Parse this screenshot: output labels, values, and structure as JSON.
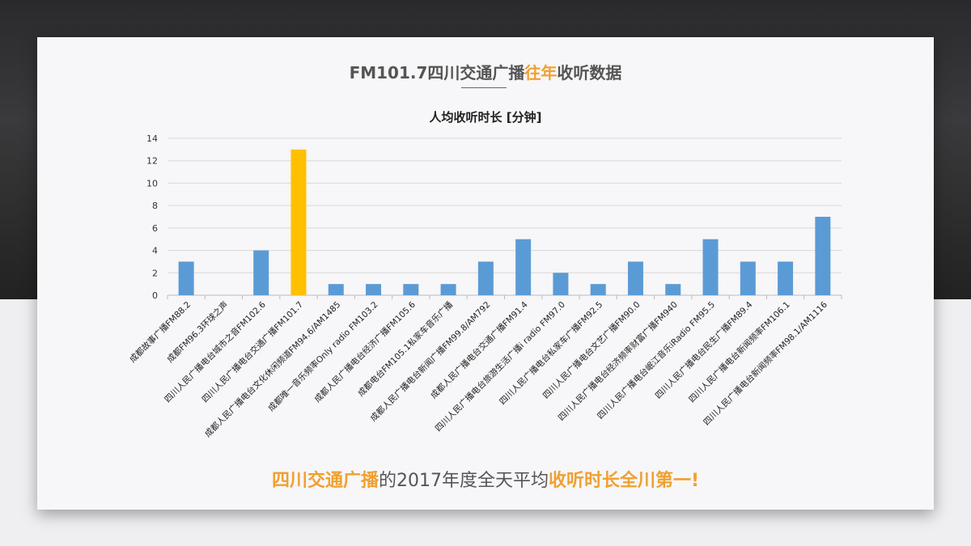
{
  "header": {
    "title_pre": "FM101.7四川交通广播",
    "title_hl": "往年",
    "title_post": "收听数据"
  },
  "footer": {
    "part1": "四川交通广播",
    "part2": "的2017年度全天平均",
    "part3": "收听时长全川第一",
    "part4": "!"
  },
  "colors": {
    "bar": "#5b9bd5",
    "highlight": "#ffc000",
    "accent": "#f0a030"
  },
  "chart_data": {
    "type": "bar",
    "title": "人均收听时长 [分钟]",
    "xlabel": "",
    "ylabel": "",
    "ylim": [
      0,
      14
    ],
    "yticks": [
      0,
      2,
      4,
      6,
      8,
      10,
      12,
      14
    ],
    "grid": true,
    "highlight_index": 3,
    "categories": [
      "成都故事广播FM88.2",
      "成都FM96.3环球之声",
      "四川人民广播电台城市之音FM102.6",
      "四川人民广播电台交通广播FM101.7",
      "成都人民广播电台文化休闲频道FM94.6/AM1485",
      "成都唯一音乐频率Only radio FM103.2",
      "成都人民广播电台经济广播FM105.6",
      "成都电台FM105.1私家车音乐广播",
      "成都人民广播电台新闻广播FM99.8/AM792",
      "成都人民广播电台交通广播FM91.4",
      "四川人民广播电台旅游生活广播i radio FM97.0",
      "四川人民广播电台私家车广播FM92.5",
      "四川人民广播电台文艺广播FM90.0",
      "四川人民广播电台经济频率财富广播FM940",
      "四川人民广播电台岷江音乐iRadio FM95.5",
      "四川人民广播电台民生广播FM89.4",
      "四川人民广播电台新闻频率FM106.1",
      "四川人民广播电台新闻频率FM98.1/AM1116"
    ],
    "values": [
      3,
      0,
      4,
      13,
      1,
      1,
      1,
      1,
      3,
      5,
      2,
      1,
      3,
      1,
      5,
      3,
      3,
      7
    ]
  }
}
